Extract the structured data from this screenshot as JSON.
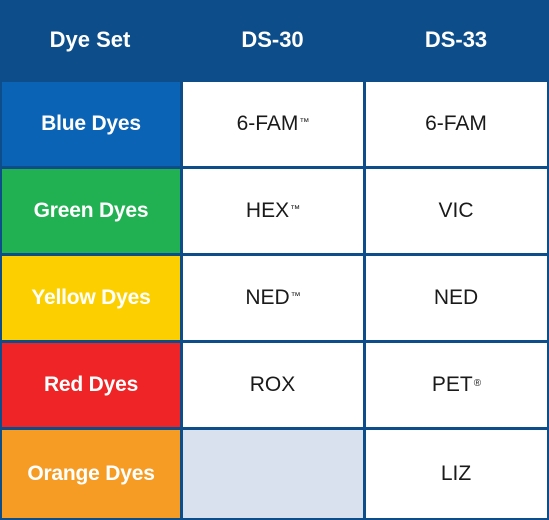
{
  "header": {
    "col1": "Dye Set",
    "col2": "DS-30",
    "col3": "DS-33"
  },
  "rows": [
    {
      "label": "Blue Dyes",
      "color": "#0a63b4",
      "ds30": "6-FAM",
      "ds30_mark": "™",
      "ds33": "6-FAM",
      "ds33_mark": ""
    },
    {
      "label": "Green Dyes",
      "color": "#22b152",
      "ds30": "HEX",
      "ds30_mark": "™",
      "ds33": "VIC",
      "ds33_mark": ""
    },
    {
      "label": "Yellow Dyes",
      "color": "#fcd000",
      "ds30": "NED",
      "ds30_mark": "™",
      "ds33": "NED",
      "ds33_mark": ""
    },
    {
      "label": "Red Dyes",
      "color": "#ee2426",
      "ds30": "ROX",
      "ds30_mark": "",
      "ds33": "PET",
      "ds33_mark": "®"
    },
    {
      "label": "Orange Dyes",
      "color": "#f69c25",
      "ds30": "",
      "ds30_mark": "",
      "ds33": "LIZ",
      "ds33_mark": ""
    }
  ],
  "colors": {
    "header_bg": "#0d4e8a",
    "empty_cell": "#d9e0ee"
  }
}
